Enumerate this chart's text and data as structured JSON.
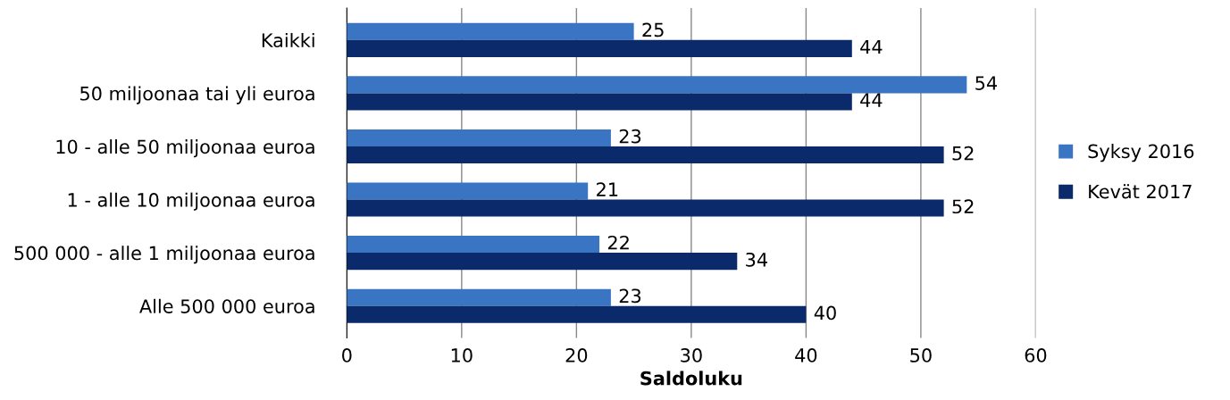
{
  "chart_data": {
    "type": "bar",
    "orientation": "horizontal",
    "xlabel": "Saldoluku",
    "categories": [
      "Kaikki",
      "50 miljoonaa tai yli euroa",
      "10 - alle 50 miljoonaa euroa",
      "1 - alle 10 miljoonaa euroa",
      "500 000 - alle 1 miljoonaa euroa",
      "Alle 500 000 euroa"
    ],
    "series": [
      {
        "name": "Syksy 2016",
        "color": "#3a75c4",
        "values": [
          25,
          54,
          23,
          21,
          22,
          23
        ]
      },
      {
        "name": "Kevät 2017",
        "color": "#0b2a6b",
        "values": [
          44,
          44,
          52,
          52,
          34,
          40
        ]
      }
    ],
    "xlim": [
      0,
      60
    ],
    "xticks": [
      0,
      10,
      20,
      30,
      40,
      50,
      60
    ],
    "grid": "x",
    "legend": "right",
    "data_labels": true
  }
}
